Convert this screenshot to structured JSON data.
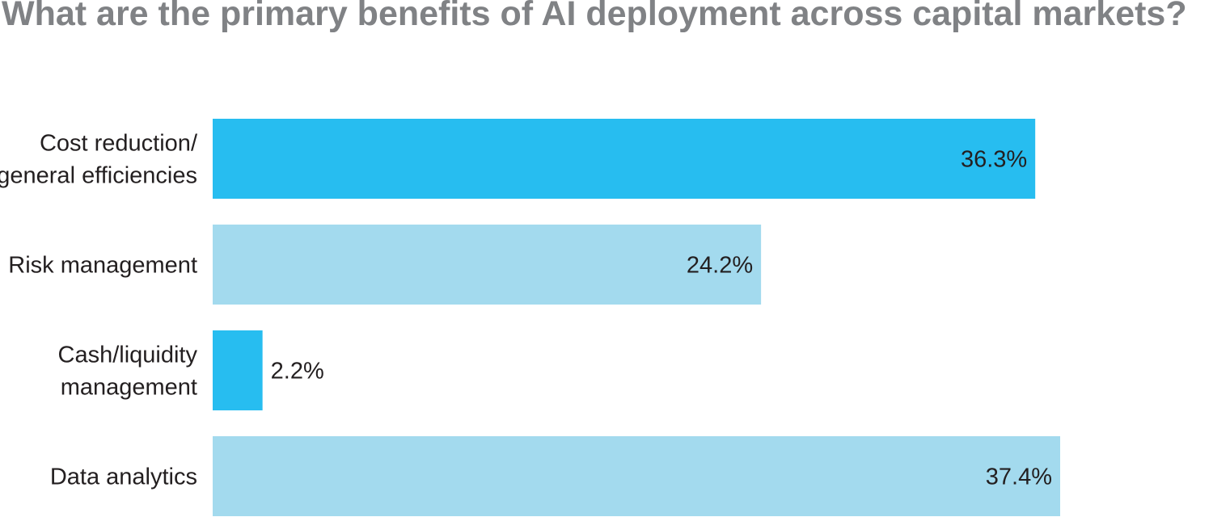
{
  "chart_data": {
    "type": "bar",
    "orientation": "horizontal",
    "title": "What are the primary benefits of AI deployment across capital markets?",
    "categories": [
      [
        "Cost reduction/",
        "general efficiencies"
      ],
      [
        "Risk management"
      ],
      [
        "Cash/liquidity",
        "management"
      ],
      [
        "Data analytics"
      ]
    ],
    "values": [
      36.3,
      24.2,
      2.2,
      37.4
    ],
    "value_labels": [
      "36.3%",
      "24.2%",
      "2.2%",
      "37.4%"
    ],
    "unit": "%",
    "bar_colors": [
      "#27bdf0",
      "#a3daee",
      "#27bdf0",
      "#a3daee"
    ],
    "xlim": [
      0,
      37.4
    ],
    "grid": false,
    "legend": "none"
  }
}
